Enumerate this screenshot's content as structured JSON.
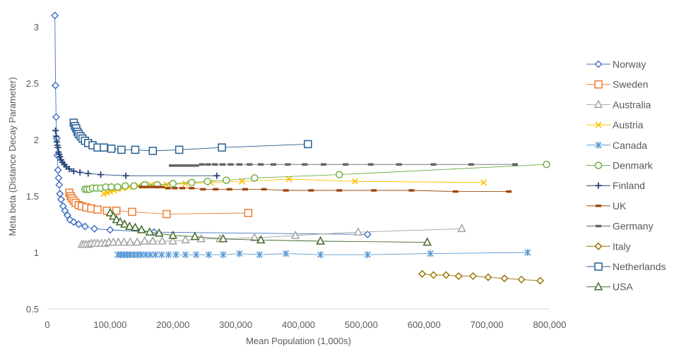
{
  "chart_data": {
    "type": "line",
    "title": "",
    "xlabel": "Mean Population (1,000s)",
    "ylabel": "Meta beta (Distance Decay Parameter)",
    "xlim": [
      0,
      800000
    ],
    "ylim": [
      0.5,
      3.2
    ],
    "x_ticks": [
      0,
      100000,
      200000,
      300000,
      400000,
      500000,
      600000,
      700000,
      800000
    ],
    "x_tick_labels": [
      "0",
      "100,000",
      "200,000",
      "300,000",
      "400,000",
      "500,000",
      "600,000",
      "700,000",
      "800,000"
    ],
    "y_ticks": [
      0.5,
      1,
      1.5,
      2,
      2.5,
      3
    ],
    "y_tick_labels": [
      "0.5",
      "1",
      "1.5",
      "2",
      "2.5",
      "3"
    ],
    "grid": false,
    "legend_position": "right",
    "series": [
      {
        "name": "Norway",
        "color": "#4472C4",
        "marker": "diamond",
        "x": [
          12000,
          13000,
          14000,
          15000,
          16000,
          17000,
          18000,
          19000,
          20000,
          22000,
          25000,
          28000,
          32000,
          36000,
          42000,
          50000,
          60000,
          75000,
          100000,
          170000,
          510000
        ],
        "y": [
          3.1,
          2.48,
          2.2,
          2.01,
          1.86,
          1.73,
          1.66,
          1.6,
          1.52,
          1.47,
          1.41,
          1.37,
          1.33,
          1.29,
          1.27,
          1.25,
          1.23,
          1.21,
          1.2,
          1.18,
          1.16
        ]
      },
      {
        "name": "Sweden",
        "color": "#ED7D31",
        "marker": "square",
        "x": [
          35000,
          37000,
          39000,
          42000,
          45000,
          50000,
          55000,
          62000,
          70000,
          80000,
          95000,
          110000,
          135000,
          190000,
          320000
        ],
        "y": [
          1.53,
          1.5,
          1.48,
          1.46,
          1.44,
          1.42,
          1.41,
          1.4,
          1.39,
          1.38,
          1.37,
          1.37,
          1.36,
          1.34,
          1.35
        ]
      },
      {
        "name": "Australia",
        "color": "#A5A5A5",
        "marker": "triangle",
        "x": [
          55000,
          58000,
          62000,
          66000,
          70000,
          75000,
          80000,
          86000,
          92000,
          98000,
          105000,
          113000,
          122000,
          132000,
          143000,
          155000,
          168000,
          183000,
          200000,
          220000,
          245000,
          275000,
          330000,
          395000,
          495000,
          660000
        ],
        "y": [
          1.07,
          1.07,
          1.07,
          1.07,
          1.08,
          1.08,
          1.08,
          1.08,
          1.08,
          1.09,
          1.09,
          1.09,
          1.09,
          1.09,
          1.09,
          1.1,
          1.1,
          1.1,
          1.1,
          1.11,
          1.12,
          1.12,
          1.13,
          1.15,
          1.18,
          1.21
        ]
      },
      {
        "name": "Austria",
        "color": "#FFC000",
        "marker": "x",
        "x": [
          90000,
          95000,
          100000,
          106000,
          112000,
          120000,
          130000,
          145000,
          165000,
          190000,
          220000,
          260000,
          310000,
          385000,
          490000,
          695000
        ],
        "y": [
          1.52,
          1.53,
          1.54,
          1.55,
          1.56,
          1.57,
          1.58,
          1.59,
          1.6,
          1.6,
          1.61,
          1.62,
          1.63,
          1.65,
          1.63,
          1.62
        ]
      },
      {
        "name": "Canada",
        "color": "#5B9BD5",
        "marker": "star",
        "x": [
          112000,
          117000,
          122000,
          127000,
          132000,
          138000,
          144000,
          150000,
          157000,
          164000,
          172000,
          182000,
          193000,
          205000,
          220000,
          237000,
          257000,
          280000,
          306000,
          338000,
          380000,
          435000,
          510000,
          610000,
          765000
        ],
        "y": [
          0.98,
          0.98,
          0.98,
          0.98,
          0.98,
          0.98,
          0.98,
          0.98,
          0.98,
          0.98,
          0.98,
          0.98,
          0.98,
          0.98,
          0.98,
          0.98,
          0.98,
          0.98,
          0.99,
          0.98,
          0.99,
          0.98,
          0.98,
          0.99,
          1.0
        ]
      },
      {
        "name": "Denmark",
        "color": "#70AD47",
        "marker": "circle",
        "x": [
          60000,
          63000,
          67000,
          72000,
          78000,
          85000,
          93000,
          102000,
          112000,
          124000,
          138000,
          155000,
          175000,
          200000,
          230000,
          255000,
          285000,
          330000,
          465000,
          795000
        ],
        "y": [
          1.56,
          1.56,
          1.56,
          1.57,
          1.57,
          1.57,
          1.58,
          1.58,
          1.58,
          1.59,
          1.59,
          1.6,
          1.6,
          1.61,
          1.62,
          1.63,
          1.64,
          1.66,
          1.69,
          1.78
        ]
      },
      {
        "name": "Finland",
        "color": "#264478",
        "marker": "plus",
        "x": [
          13000,
          14000,
          15000,
          16000,
          17000,
          18000,
          19000,
          20000,
          22000,
          24000,
          27000,
          30000,
          35000,
          42000,
          52000,
          65000,
          85000,
          125000,
          270000
        ],
        "y": [
          2.08,
          2.03,
          1.98,
          1.95,
          1.93,
          1.89,
          1.87,
          1.85,
          1.82,
          1.8,
          1.78,
          1.76,
          1.74,
          1.72,
          1.71,
          1.7,
          1.69,
          1.68,
          1.68
        ]
      },
      {
        "name": "UK",
        "color": "#9E480E",
        "marker": "dash",
        "x": [
          150000,
          157000,
          165000,
          173000,
          182000,
          192000,
          203000,
          215000,
          230000,
          248000,
          268000,
          290000,
          315000,
          345000,
          380000,
          420000,
          465000,
          520000,
          580000,
          650000,
          735000
        ],
        "y": [
          1.58,
          1.58,
          1.58,
          1.58,
          1.58,
          1.57,
          1.57,
          1.57,
          1.57,
          1.56,
          1.56,
          1.56,
          1.56,
          1.56,
          1.55,
          1.55,
          1.55,
          1.55,
          1.55,
          1.54,
          1.54
        ]
      },
      {
        "name": "Germany",
        "color": "#636363",
        "marker": "dash",
        "x": [
          198000,
          205000,
          212000,
          220000,
          228000,
          237000,
          246000,
          256000,
          267000,
          279000,
          292000,
          306000,
          322000,
          340000,
          360000,
          383000,
          410000,
          440000,
          475000,
          515000,
          560000,
          615000,
          675000,
          745000
        ],
        "y": [
          1.77,
          1.77,
          1.77,
          1.77,
          1.77,
          1.77,
          1.78,
          1.78,
          1.78,
          1.78,
          1.78,
          1.78,
          1.78,
          1.78,
          1.78,
          1.78,
          1.78,
          1.78,
          1.78,
          1.78,
          1.78,
          1.78,
          1.78,
          1.78
        ]
      },
      {
        "name": "Italy",
        "color": "#997300",
        "marker": "diamond",
        "x": [
          597000,
          615000,
          635000,
          655000,
          678000,
          702000,
          728000,
          755000,
          785000
        ],
        "y": [
          0.81,
          0.8,
          0.8,
          0.79,
          0.79,
          0.78,
          0.77,
          0.76,
          0.75
        ]
      },
      {
        "name": "Netherlands",
        "color": "#255E91",
        "marker": "square",
        "x": [
          42000,
          44000,
          46000,
          48000,
          50000,
          53000,
          56000,
          60000,
          65000,
          72000,
          80000,
          90000,
          102000,
          118000,
          140000,
          168000,
          210000,
          278000,
          415000
        ],
        "y": [
          2.15,
          2.12,
          2.1,
          2.07,
          2.05,
          2.03,
          2.01,
          1.99,
          1.97,
          1.95,
          1.93,
          1.93,
          1.92,
          1.91,
          1.91,
          1.9,
          1.91,
          1.93,
          1.96
        ]
      },
      {
        "name": "USA",
        "color": "#43682B",
        "marker": "triangle",
        "x": [
          100000,
          105000,
          110000,
          116000,
          123000,
          131000,
          140000,
          150000,
          163000,
          178000,
          200000,
          235000,
          280000,
          340000,
          435000,
          605000
        ],
        "y": [
          1.35,
          1.32,
          1.29,
          1.27,
          1.25,
          1.23,
          1.22,
          1.2,
          1.18,
          1.17,
          1.15,
          1.14,
          1.12,
          1.11,
          1.1,
          1.09
        ]
      }
    ]
  }
}
